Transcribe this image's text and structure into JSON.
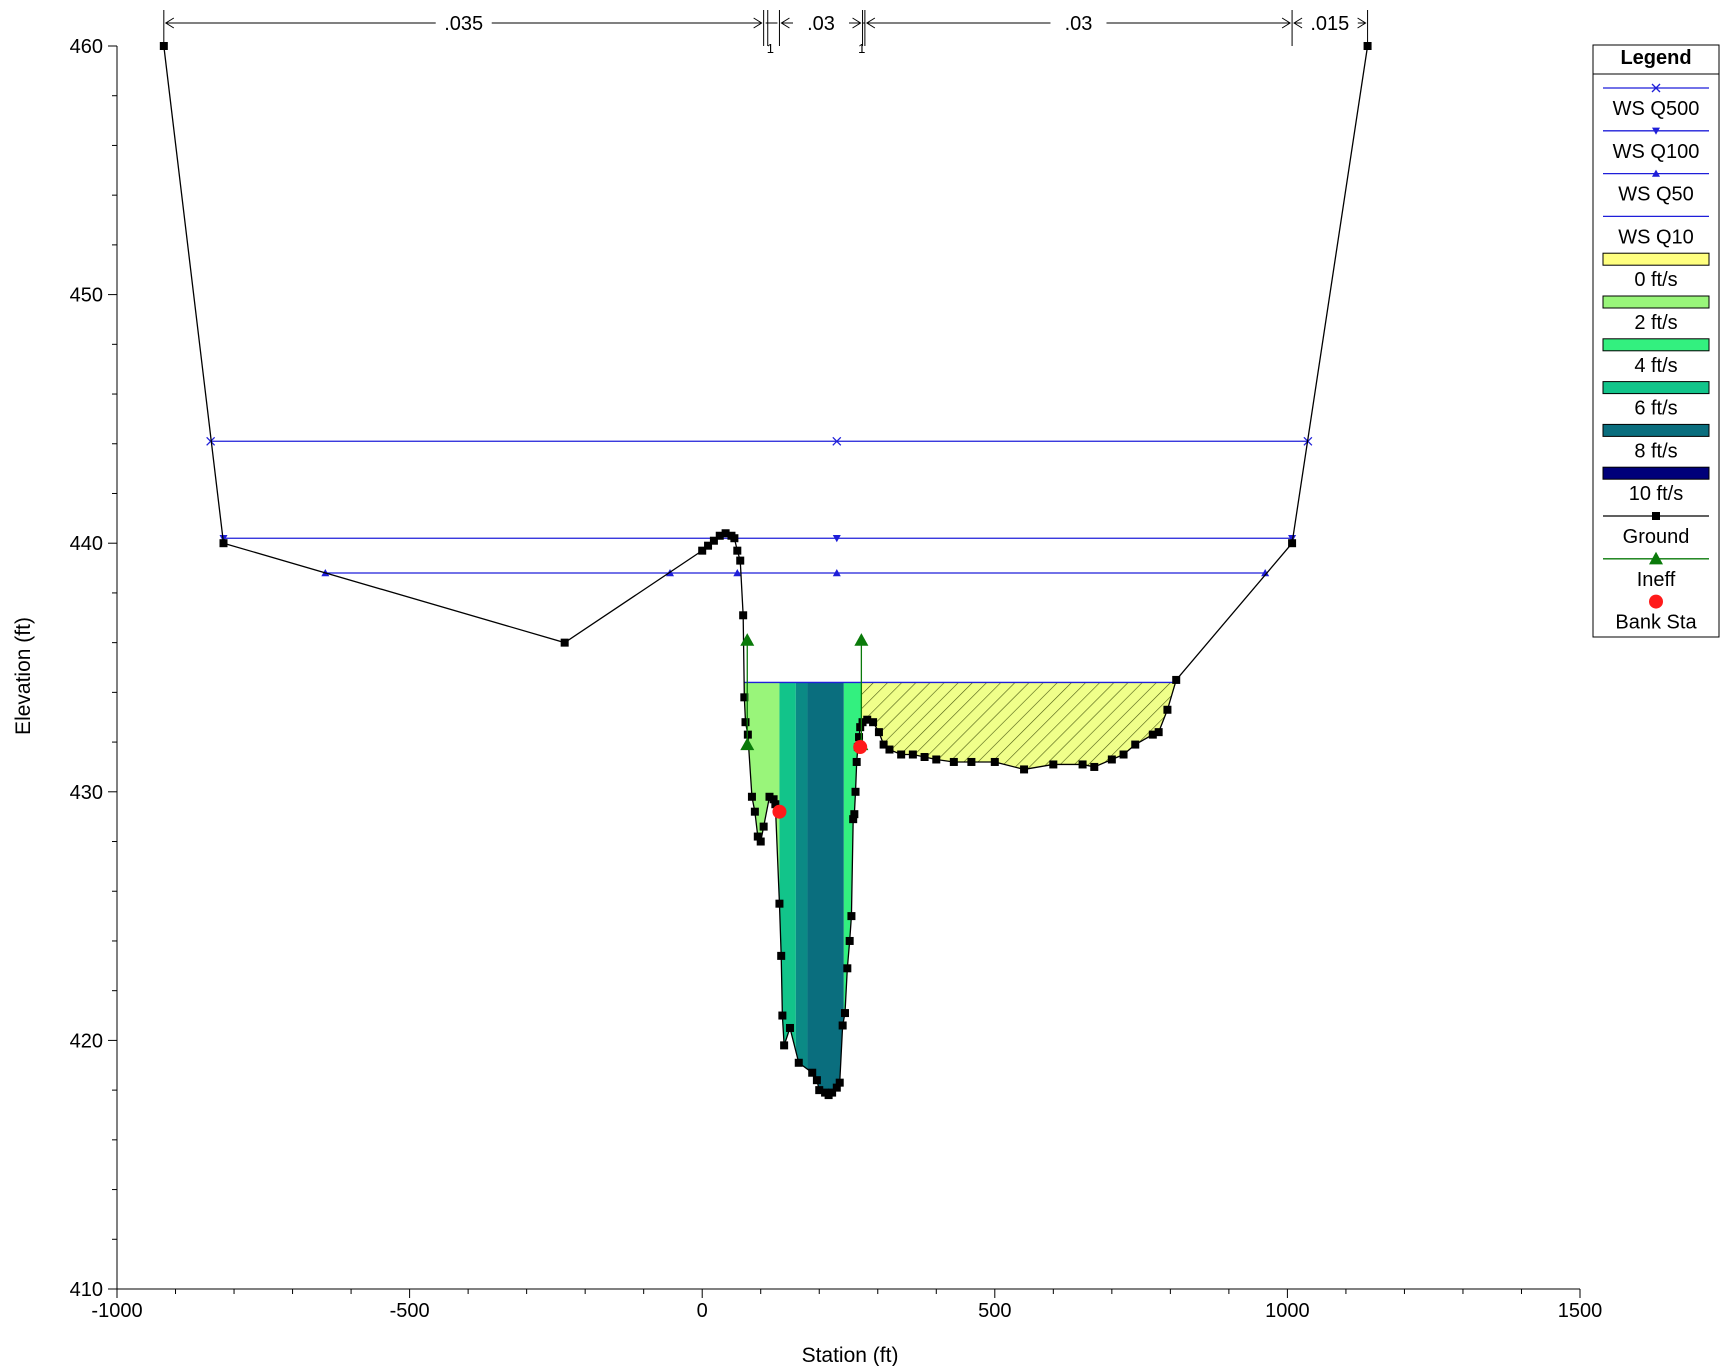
{
  "chart_data": {
    "type": "line",
    "title": "",
    "xlabel": "Station (ft)",
    "ylabel": "Elevation (ft)",
    "xlim": [
      -1000,
      1500
    ],
    "ylim": [
      410,
      460
    ],
    "x_ticks": [
      -1000,
      -500,
      0,
      500,
      1000,
      1500
    ],
    "y_ticks": [
      410,
      420,
      430,
      440,
      450,
      460
    ],
    "grid": false,
    "legend_position": "right",
    "legend_title": "Legend",
    "legend": [
      {
        "label": "WS Q500",
        "kind": "line",
        "marker": "x",
        "color": "#1f1fd9"
      },
      {
        "label": "WS Q100",
        "kind": "line",
        "marker": "triangle-down",
        "color": "#1f1fd9"
      },
      {
        "label": "WS Q50",
        "kind": "line",
        "marker": "triangle-up",
        "color": "#1f1fd9"
      },
      {
        "label": "WS Q10",
        "kind": "line",
        "marker": "none",
        "color": "#1f1fd9"
      },
      {
        "label": "0 ft/s",
        "kind": "swatch",
        "color": "#ffff7f"
      },
      {
        "label": "2 ft/s",
        "kind": "swatch",
        "color": "#99f57a"
      },
      {
        "label": "4 ft/s",
        "kind": "swatch",
        "color": "#33f07f"
      },
      {
        "label": "6 ft/s",
        "kind": "swatch",
        "color": "#12c48a"
      },
      {
        "label": "8 ft/s",
        "kind": "swatch",
        "color": "#0a6e7e"
      },
      {
        "label": "10 ft/s",
        "kind": "swatch",
        "color": "#00007a"
      },
      {
        "label": "Ground",
        "kind": "line",
        "marker": "square",
        "color": "#000000"
      },
      {
        "label": "Ineff",
        "kind": "line",
        "marker": "triangle-up",
        "color": "#0a7a0a"
      },
      {
        "label": "Bank Sta",
        "kind": "marker",
        "marker": "circle",
        "color": "#ff1a1a"
      }
    ],
    "mannings_n": [
      {
        "label": ".035",
        "from": -920,
        "to": 105
      },
      {
        "label": "",
        "from": 105,
        "to": 132
      },
      {
        "label": ".03",
        "from": 132,
        "to": 274
      },
      {
        "label": "",
        "from": 274,
        "to": 278
      },
      {
        "label": ".03",
        "from": 278,
        "to": 1008
      },
      {
        "label": ".015",
        "from": 1008,
        "to": 1137
      }
    ],
    "mannings_breaks": [
      -920,
      105,
      112,
      132,
      274,
      278,
      1008,
      1137
    ],
    "mannings_small_labels": [
      {
        "label": "1",
        "x": 120
      },
      {
        "label": "1",
        "x": 276
      }
    ],
    "ground": {
      "x": [
        -920,
        -818,
        -235,
        0,
        10,
        20,
        30,
        40,
        50,
        55,
        60,
        65,
        70,
        72,
        74,
        78,
        85,
        90,
        95,
        100,
        105,
        115,
        122,
        125,
        132,
        135,
        137,
        140,
        150,
        165,
        188,
        196,
        200,
        210,
        216,
        222,
        230,
        235,
        240,
        244,
        248,
        252,
        255,
        258,
        260,
        262,
        264,
        266,
        268,
        270,
        274,
        282,
        292,
        302,
        310,
        320,
        340,
        360,
        380,
        400,
        430,
        460,
        500,
        550,
        600,
        650,
        670,
        700,
        720,
        740,
        770,
        780,
        795,
        810,
        1008,
        1137
      ],
      "y": [
        460,
        440,
        436,
        439.7,
        439.9,
        440.1,
        440.3,
        440.4,
        440.3,
        440.2,
        439.7,
        439.3,
        437.1,
        433.8,
        432.8,
        432.3,
        429.8,
        429.2,
        428.2,
        428.0,
        428.6,
        429.8,
        429.7,
        429.5,
        425.5,
        423.4,
        421.0,
        419.8,
        420.5,
        419.1,
        418.7,
        418.4,
        418.0,
        417.9,
        417.8,
        417.9,
        418.1,
        418.3,
        420.6,
        421.1,
        422.9,
        424.0,
        425.0,
        428.9,
        429.1,
        430.0,
        431.2,
        431.8,
        432.2,
        432.6,
        432.8,
        432.9,
        432.8,
        432.4,
        431.9,
        431.7,
        431.5,
        431.5,
        431.4,
        431.3,
        431.2,
        431.2,
        431.2,
        430.9,
        431.1,
        431.1,
        431.0,
        431.3,
        431.5,
        431.9,
        432.3,
        432.4,
        433.3,
        434.5,
        440,
        460
      ]
    },
    "bank_stations": [
      {
        "x": 132,
        "y": 429.2
      },
      {
        "x": 270,
        "y": 431.8
      }
    ],
    "ineffective": [
      {
        "x": 77,
        "y_bottom": 431.9,
        "y_top": 436.1
      },
      {
        "x": 272,
        "y_bottom": 431.9,
        "y_top": 436.1
      }
    ],
    "water_surfaces": [
      {
        "name": "WS Q500",
        "elevation": 444.1,
        "x_left": -840,
        "x_right": 1035,
        "marker": "x",
        "marker_x": [
          -840,
          230,
          1035
        ]
      },
      {
        "name": "WS Q100",
        "elevation": 440.2,
        "x_left": -818,
        "x_right": 1008,
        "marker": "triangle-down",
        "marker_x": [
          -818,
          230,
          1008
        ]
      },
      {
        "name": "WS Q50",
        "elevation": 438.8,
        "x_left": -644,
        "x_right": 962,
        "marker": "triangle-up",
        "marker_x": [
          -644,
          -55,
          60,
          230,
          962
        ]
      },
      {
        "name": "WS Q10",
        "elevation": 434.4,
        "x_left": 72,
        "x_right": 812,
        "marker": "none"
      }
    ],
    "velocity_fill": {
      "water_elevation": 434.4,
      "slices": [
        {
          "from": 72,
          "to": 132,
          "velocity": 2
        },
        {
          "from": 132,
          "to": 160,
          "velocity": 6
        },
        {
          "from": 160,
          "to": 180,
          "velocity": 7
        },
        {
          "from": 180,
          "to": 242,
          "velocity": 8
        },
        {
          "from": 242,
          "to": 272,
          "velocity": 4
        }
      ],
      "ineffective_area": {
        "from": 272,
        "to": 812,
        "velocity": 0
      }
    }
  }
}
